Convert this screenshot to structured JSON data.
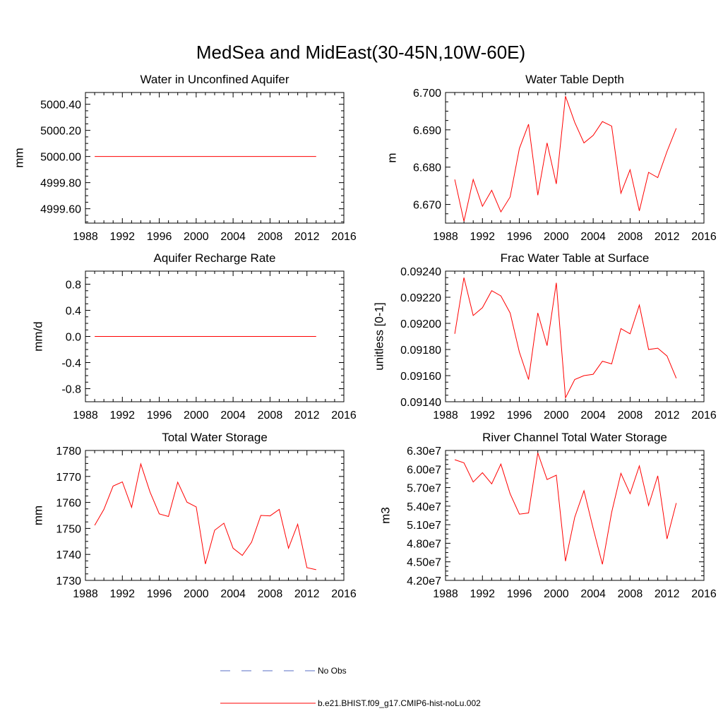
{
  "figure": {
    "title": "MedSea and MidEast(30-45N,10W-60E)",
    "legend": [
      {
        "label": "No Obs",
        "color": "#5a6fc6",
        "dash": true
      },
      {
        "label": "b.e21.BHIST.f09_g17.CMIP6-hist-noLu.002",
        "color": "#ff0000",
        "dash": false
      }
    ]
  },
  "chart_data": [
    {
      "type": "line",
      "title": "Water in Unconfined Aquifer",
      "ylabel": "mm",
      "xlim": [
        1988,
        2016
      ],
      "xticks": [
        1988,
        1992,
        1996,
        2000,
        2004,
        2008,
        2012,
        2016
      ],
      "xtick_labels": [
        "1988",
        "1992",
        "1996",
        "2000",
        "2004",
        "2008",
        "2012",
        "2016"
      ],
      "ylim": [
        4999.49,
        5000.49
      ],
      "yticks": [
        4999.6,
        4999.8,
        5000.0,
        5000.2,
        5000.4
      ],
      "ytick_labels": [
        "4999.60",
        "4999.80",
        "5000.00",
        "5000.20",
        "5000.40"
      ],
      "series": [
        {
          "color": "#ff0000",
          "x": [
            1989,
            1990,
            1991,
            1992,
            1993,
            1994,
            1995,
            1996,
            1997,
            1998,
            1999,
            2000,
            2001,
            2002,
            2003,
            2004,
            2005,
            2006,
            2007,
            2008,
            2009,
            2010,
            2011,
            2012,
            2013
          ],
          "y": [
            5000,
            5000,
            5000,
            5000,
            5000,
            5000,
            5000,
            5000,
            5000,
            5000,
            5000,
            5000,
            5000,
            5000,
            5000,
            5000,
            5000,
            5000,
            5000,
            5000,
            5000,
            5000,
            5000,
            5000,
            5000
          ]
        }
      ]
    },
    {
      "type": "line",
      "title": "Water Table Depth",
      "ylabel": "m",
      "xlim": [
        1988,
        2016
      ],
      "xticks": [
        1988,
        1992,
        1996,
        2000,
        2004,
        2008,
        2012,
        2016
      ],
      "xtick_labels": [
        "1988",
        "1992",
        "1996",
        "2000",
        "2004",
        "2008",
        "2012",
        "2016"
      ],
      "ylim": [
        6.665,
        6.7
      ],
      "yticks": [
        6.67,
        6.68,
        6.69,
        6.7
      ],
      "ytick_labels": [
        "6.670",
        "6.680",
        "6.690",
        "6.700"
      ],
      "series": [
        {
          "color": "#ff0000",
          "x": [
            1989,
            1990,
            1991,
            1992,
            1993,
            1994,
            1995,
            1996,
            1997,
            1998,
            1999,
            2000,
            2001,
            2002,
            2003,
            2004,
            2005,
            2006,
            2007,
            2008,
            2009,
            2010,
            2011,
            2012,
            2013
          ],
          "y": [
            6.6767,
            6.6655,
            6.6767,
            6.6695,
            6.6738,
            6.668,
            6.672,
            6.685,
            6.6915,
            6.6725,
            6.6865,
            6.6755,
            6.699,
            6.692,
            6.6865,
            6.6885,
            6.6922,
            6.691,
            6.673,
            6.6793,
            6.6683,
            6.6786,
            6.6772,
            6.6842,
            6.6904
          ]
        }
      ]
    },
    {
      "type": "line",
      "title": "Aquifer Recharge Rate",
      "ylabel": "mm/d",
      "xlim": [
        1988,
        2016
      ],
      "xticks": [
        1988,
        1992,
        1996,
        2000,
        2004,
        2008,
        2012,
        2016
      ],
      "xtick_labels": [
        "1988",
        "1992",
        "1996",
        "2000",
        "2004",
        "2008",
        "2012",
        "2016"
      ],
      "ylim": [
        -1.0,
        1.0
      ],
      "yticks": [
        -0.8,
        -0.4,
        0.0,
        0.4,
        0.8
      ],
      "ytick_labels": [
        "-0.8",
        "-0.4",
        "0.0",
        "0.4",
        "0.8"
      ],
      "series": [
        {
          "color": "#ff0000",
          "x": [
            1989,
            1990,
            1991,
            1992,
            1993,
            1994,
            1995,
            1996,
            1997,
            1998,
            1999,
            2000,
            2001,
            2002,
            2003,
            2004,
            2005,
            2006,
            2007,
            2008,
            2009,
            2010,
            2011,
            2012,
            2013
          ],
          "y": [
            0,
            0,
            0,
            0,
            0,
            0,
            0,
            0,
            0,
            0,
            0,
            0,
            0,
            0,
            0,
            0,
            0,
            0,
            0,
            0,
            0,
            0,
            0,
            0,
            0
          ]
        }
      ]
    },
    {
      "type": "line",
      "title": "Frac Water Table at Surface",
      "ylabel": "unitless [0-1]",
      "xlim": [
        1988,
        2016
      ],
      "xticks": [
        1988,
        1992,
        1996,
        2000,
        2004,
        2008,
        2012,
        2016
      ],
      "xtick_labels": [
        "1988",
        "1992",
        "1996",
        "2000",
        "2004",
        "2008",
        "2012",
        "2016"
      ],
      "ylim": [
        0.0914,
        0.0924
      ],
      "yticks": [
        0.0914,
        0.0916,
        0.0918,
        0.092,
        0.0922,
        0.0924
      ],
      "ytick_labels": [
        "0.09140",
        "0.09160",
        "0.09180",
        "0.09200",
        "0.09220",
        "0.09240"
      ],
      "series": [
        {
          "color": "#ff0000",
          "x": [
            1989,
            1990,
            1991,
            1992,
            1993,
            1994,
            1995,
            1996,
            1997,
            1998,
            1999,
            2000,
            2001,
            2002,
            2003,
            2004,
            2005,
            2006,
            2007,
            2008,
            2009,
            2010,
            2011,
            2012,
            2013
          ],
          "y": [
            0.09192,
            0.09235,
            0.09206,
            0.09212,
            0.09225,
            0.09221,
            0.09208,
            0.09178,
            0.09157,
            0.09208,
            0.09183,
            0.09231,
            0.09143,
            0.09157,
            0.0916,
            0.09161,
            0.09171,
            0.09169,
            0.09196,
            0.09192,
            0.09214,
            0.0918,
            0.09181,
            0.09175,
            0.09158
          ]
        }
      ]
    },
    {
      "type": "line",
      "title": "Total Water Storage",
      "ylabel": "mm",
      "xlim": [
        1988,
        2016
      ],
      "xticks": [
        1988,
        1992,
        1996,
        2000,
        2004,
        2008,
        2012,
        2016
      ],
      "xtick_labels": [
        "1988",
        "1992",
        "1996",
        "2000",
        "2004",
        "2008",
        "2012",
        "2016"
      ],
      "ylim": [
        1730,
        1780
      ],
      "yticks": [
        1730,
        1740,
        1750,
        1760,
        1770,
        1780
      ],
      "ytick_labels": [
        "1730",
        "1740",
        "1750",
        "1760",
        "1770",
        "1780"
      ],
      "series": [
        {
          "color": "#ff0000",
          "x": [
            1989,
            1990,
            1991,
            1992,
            1993,
            1994,
            1995,
            1996,
            1997,
            1998,
            1999,
            2000,
            2001,
            2002,
            2003,
            2004,
            2005,
            2006,
            2007,
            2008,
            2009,
            2010,
            2011,
            2012,
            2013
          ],
          "y": [
            1751.2,
            1757.3,
            1766.3,
            1767.9,
            1758.1,
            1774.8,
            1764.0,
            1755.6,
            1754.6,
            1767.8,
            1760.1,
            1758.3,
            1736.3,
            1749.3,
            1752.0,
            1742.4,
            1739.6,
            1744.7,
            1755.0,
            1754.8,
            1757.3,
            1742.4,
            1751.6,
            1734.9,
            1734.1
          ]
        }
      ]
    },
    {
      "type": "line",
      "title": "River Channel Total Water Storage",
      "ylabel": "m3",
      "xlim": [
        1988,
        2016
      ],
      "xticks": [
        1988,
        1992,
        1996,
        2000,
        2004,
        2008,
        2012,
        2016
      ],
      "xtick_labels": [
        "1988",
        "1992",
        "1996",
        "2000",
        "2004",
        "2008",
        "2012",
        "2016"
      ],
      "ylim": [
        42000000,
        63000000
      ],
      "yticks": [
        42000000,
        45000000,
        48000000,
        51000000,
        54000000,
        57000000,
        60000000,
        63000000
      ],
      "ytick_labels": [
        "4.20e7",
        "4.50e7",
        "4.80e7",
        "5.10e7",
        "5.40e7",
        "5.70e7",
        "6.00e7",
        "6.30e7"
      ],
      "series": [
        {
          "color": "#ff0000",
          "x": [
            1989,
            1990,
            1991,
            1992,
            1993,
            1994,
            1995,
            1996,
            1997,
            1998,
            1999,
            2000,
            2001,
            2002,
            2003,
            2004,
            2005,
            2006,
            2007,
            2008,
            2009,
            2010,
            2011,
            2012,
            2013
          ],
          "y": [
            61500000,
            61000000,
            57900000,
            59400000,
            57600000,
            60800000,
            56000000,
            52700000,
            52900000,
            62600000,
            58300000,
            59000000,
            45100000,
            52200000,
            56500000,
            50400000,
            44600000,
            53000000,
            59300000,
            56000000,
            60500000,
            54100000,
            58900000,
            48700000,
            54500000
          ]
        }
      ]
    }
  ]
}
